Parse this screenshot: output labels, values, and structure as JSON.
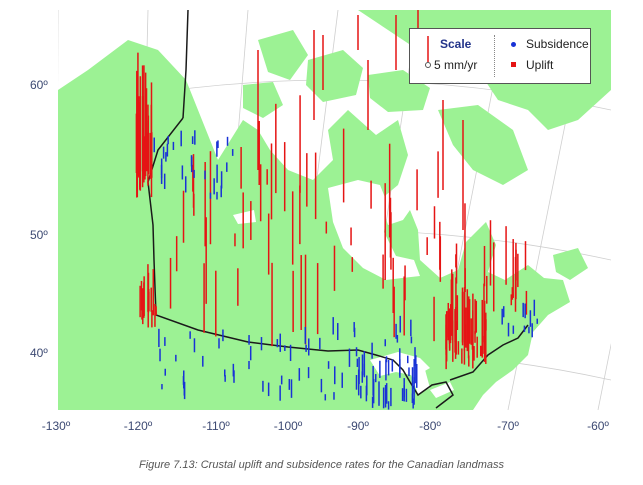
{
  "figure": {
    "caption": "Figure 7.13: Crustal uplift and subsidence rates for the Canadian landmass",
    "latitude_labels": [
      "60º",
      "50º",
      "40º"
    ],
    "longitude_labels": [
      "-130º",
      "-120º",
      "-110º",
      "-100º",
      "-90º",
      "-80º",
      "-70º",
      "-60º"
    ]
  },
  "legend": {
    "scale_title": "Scale",
    "scale_value": "5 mm/yr",
    "subsidence_label": "Subsidence",
    "uplift_label": "Uplift"
  },
  "colors": {
    "land": "#9cf294",
    "water": "#ffffff",
    "border": "#1a1a1a",
    "uplift": "#e51414",
    "subsidence": "#1832d6",
    "graticule": "#cfcfcf",
    "label": "#3d4a73"
  },
  "chart_data": {
    "type": "map",
    "title": "",
    "layers": [
      {
        "name": "Uplift",
        "marker": "vertical bar",
        "color": "#e51414"
      },
      {
        "name": "Subsidence",
        "marker": "vertical bar",
        "color": "#1832d6"
      }
    ],
    "scale_reference": "5 mm/yr",
    "lat_ticks": [
      60,
      50,
      40
    ],
    "lon_ticks": [
      -130,
      -120,
      -110,
      -100,
      -90,
      -80,
      -70,
      -60
    ],
    "legend_position": "top-right"
  }
}
